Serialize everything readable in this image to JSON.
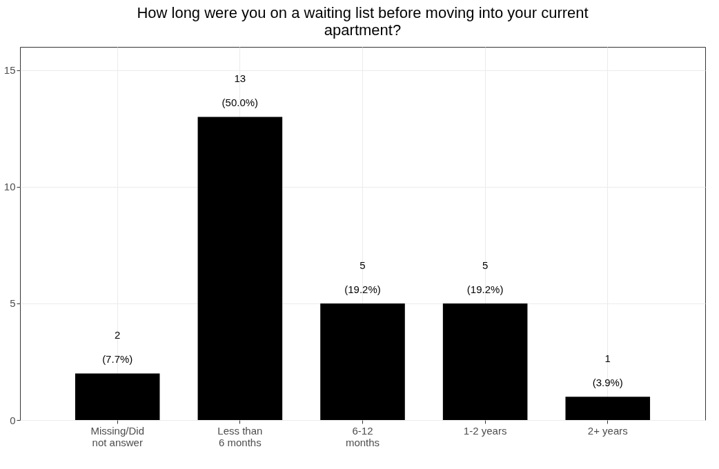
{
  "chart_data": {
    "type": "bar",
    "title": "How long were you on a waiting list before moving into your current apartment?",
    "categories": [
      "Missing/Did not answer",
      "Less than 6 months",
      "6-12 months",
      "1-2 years",
      "2+ years"
    ],
    "values": [
      2,
      13,
      5,
      5,
      1
    ],
    "value_labels": [
      "2 (7.7%)",
      "13 (50.0%)",
      "5 (19.2%)",
      "5 (19.2%)",
      "1 (3.9%)"
    ],
    "color": "#000000",
    "ylim": [
      0,
      16
    ],
    "yticks": [
      0,
      5,
      10,
      15
    ],
    "grid": true
  }
}
